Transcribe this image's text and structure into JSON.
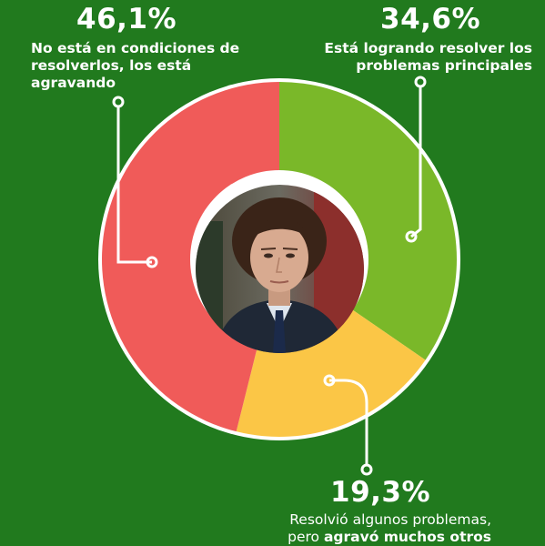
{
  "chart_data": {
    "type": "pie",
    "variant": "donut",
    "slices": [
      {
        "label": "Está logrando resolver los problemas principales",
        "value": 34.6,
        "value_text": "34,6%",
        "color": "#7ab829"
      },
      {
        "label": "Resolvió algunos problemas, pero agravó muchos otros",
        "value": 19.3,
        "value_text": "19,3%",
        "color": "#fbc646"
      },
      {
        "label": "No está en condiciones de resolverlos, los está agravando",
        "value": 46.1,
        "value_text": "46,1%",
        "color": "#f05b59"
      }
    ]
  },
  "labels": {
    "red_pct": "46,1%",
    "red_text": "No está en condiciones de resolverlos, los está agravando",
    "green_pct": "34,6%",
    "green_text": "Está logrando resolver los problemas principales",
    "yellow_pct": "19,3%",
    "yellow_text_normal": "Resolvió algunos problemas,",
    "yellow_text_pre": "pero ",
    "yellow_text_bold": "agravó muchos otros"
  },
  "center_image": {
    "icon": "portrait-photo",
    "description": "man in suit portrait"
  },
  "colors": {
    "background": "#217a1e",
    "ring_border": "#ffffff"
  }
}
